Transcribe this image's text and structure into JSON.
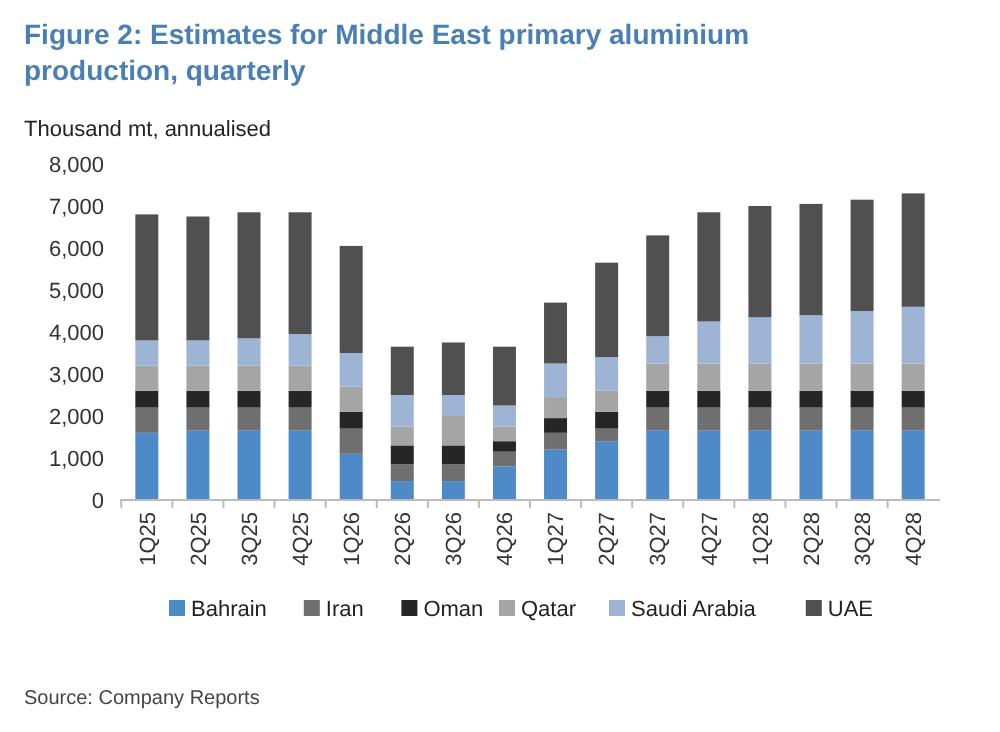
{
  "chart_data": {
    "type": "bar",
    "stacked": true,
    "title": "Figure 2: Estimates for Middle East primary aluminium production, quarterly",
    "ylabel": "Thousand mt, annualised",
    "categories": [
      "1Q25",
      "2Q25",
      "3Q25",
      "4Q25",
      "1Q26",
      "2Q26",
      "3Q26",
      "4Q26",
      "1Q27",
      "2Q27",
      "3Q27",
      "4Q27",
      "1Q28",
      "2Q28",
      "3Q28",
      "4Q28"
    ],
    "series": [
      {
        "name": "Bahrain",
        "color": "#4e8ac8",
        "values": [
          1600,
          1650,
          1650,
          1650,
          1100,
          450,
          450,
          800,
          1200,
          1400,
          1650,
          1650,
          1650,
          1650,
          1650,
          1650
        ]
      },
      {
        "name": "Iran",
        "color": "#6f6f6f",
        "values": [
          600,
          550,
          550,
          550,
          600,
          400,
          400,
          350,
          400,
          300,
          550,
          550,
          550,
          550,
          550,
          550
        ]
      },
      {
        "name": "Oman",
        "color": "#262626",
        "values": [
          400,
          400,
          400,
          400,
          400,
          450,
          450,
          250,
          350,
          400,
          400,
          400,
          400,
          400,
          400,
          400
        ]
      },
      {
        "name": "Qatar",
        "color": "#a5a5a5",
        "values": [
          600,
          600,
          600,
          600,
          600,
          450,
          700,
          350,
          500,
          500,
          650,
          650,
          650,
          650,
          650,
          650
        ]
      },
      {
        "name": "Saudi Arabia",
        "color": "#9db4d4",
        "values": [
          600,
          600,
          650,
          750,
          800,
          750,
          500,
          500,
          800,
          800,
          650,
          1000,
          1100,
          1150,
          1250,
          1350
        ]
      },
      {
        "name": "UAE",
        "color": "#505050",
        "values": [
          3000,
          2950,
          3000,
          2900,
          2550,
          1150,
          1250,
          1400,
          1450,
          2250,
          2400,
          2600,
          2650,
          2650,
          2650,
          2700
        ]
      }
    ],
    "ylim": [
      0,
      8000
    ],
    "yticks": [
      {
        "value": 0,
        "label": "0"
      },
      {
        "value": 1000,
        "label": "1,000"
      },
      {
        "value": 2000,
        "label": "2,000"
      },
      {
        "value": 3000,
        "label": "3,000"
      },
      {
        "value": 4000,
        "label": "4,000"
      },
      {
        "value": 5000,
        "label": "5,000"
      },
      {
        "value": 6000,
        "label": "6,000"
      },
      {
        "value": 7000,
        "label": "7,000"
      },
      {
        "value": 8000,
        "label": "8,000"
      }
    ],
    "grid": false,
    "legend": "bottom",
    "annotations": [
      "Source: Company Reports"
    ]
  }
}
